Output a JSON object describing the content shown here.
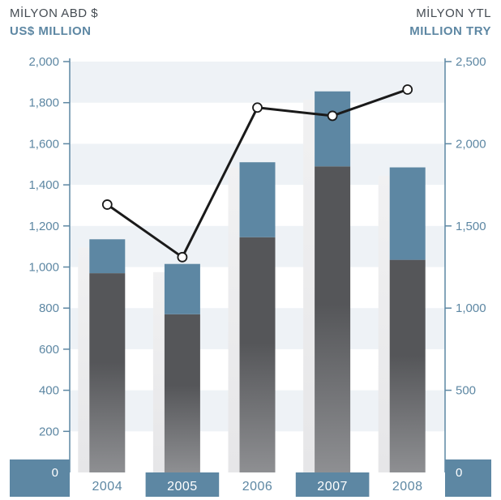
{
  "header": {
    "left_tr": "MİLYON ABD $",
    "left_en": "US$ MILLION",
    "right_tr": "MİLYON YTL",
    "right_en": "MILLION TRY"
  },
  "colors": {
    "band": "#eef2f6",
    "axis": "#5d87a3",
    "bar_top": "#5d87a3",
    "bar_dark": "#555659",
    "bar_light": "#8e8f92",
    "ghost": "#ededee",
    "line": "#1a1a1a",
    "label_box": "#5d87a3"
  },
  "chart_data": {
    "type": "bar",
    "categories": [
      "2004",
      "2005",
      "2006",
      "2007",
      "2008"
    ],
    "ylim": [
      0,
      2000
    ],
    "y2lim": [
      0,
      2500
    ],
    "yticks": [
      "0",
      "200",
      "400",
      "600",
      "800",
      "1,000",
      "1,200",
      "1,400",
      "1,600",
      "1,800",
      "2,000"
    ],
    "y2ticks": [
      "0",
      "500",
      "1,000",
      "1,500",
      "2,000",
      "2,500"
    ],
    "series": [
      {
        "name": "",
        "axis": "left",
        "kind": "stacked-dark",
        "values": [
          970,
          770,
          1145,
          1490,
          1035
        ]
      },
      {
        "name": "",
        "axis": "left",
        "kind": "stacked-blue",
        "values": [
          165,
          245,
          365,
          365,
          450
        ]
      },
      {
        "name": "",
        "axis": "left",
        "kind": "ghost",
        "values": [
          1095,
          975,
          1485,
          1815,
          1445
        ]
      },
      {
        "name": "",
        "axis": "right",
        "kind": "line",
        "values": [
          1630,
          1310,
          2220,
          2170,
          2330
        ]
      }
    ]
  }
}
